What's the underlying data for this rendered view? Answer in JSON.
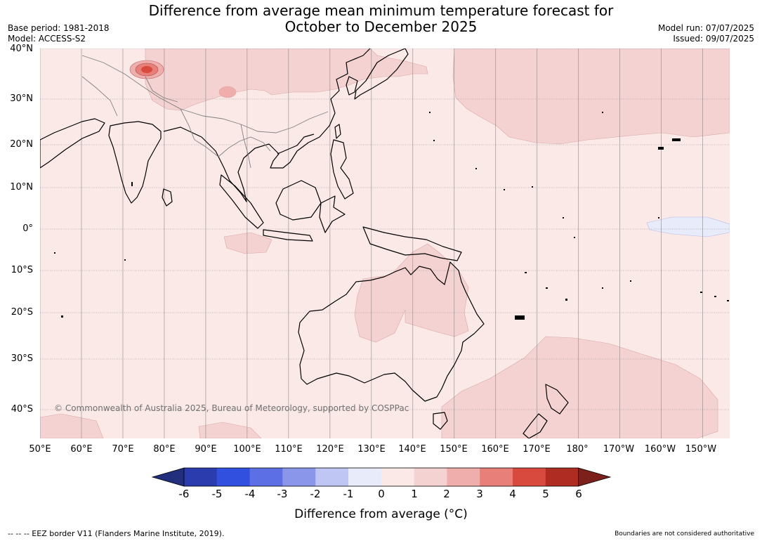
{
  "title_line1": "Difference from average mean minimum temperature forecast for",
  "title_line2": "October to December 2025",
  "meta": {
    "base_period": "Base period: 1981-2018",
    "model": "Model: ACCESS-S2",
    "model_run": "Model run: 07/07/2025",
    "issued": "Issued: 09/07/2025"
  },
  "map": {
    "lat_labels": [
      "40°N",
      "30°N",
      "20°N",
      "10°N",
      "0°",
      "10°S",
      "20°S",
      "30°S",
      "40°S"
    ],
    "lon_labels": [
      "50°E",
      "60°E",
      "70°E",
      "80°E",
      "90°E",
      "100°E",
      "110°E",
      "120°E",
      "130°E",
      "140°E",
      "150°E",
      "160°E",
      "170°E",
      "180°",
      "170°W",
      "160°W",
      "150°W"
    ],
    "copyright": "© Commonwealth of Australia 2025, Bureau of Meteorology, supported by COSPPac",
    "extent": {
      "lon": [
        50,
        216.5
      ],
      "lat": [
        -46.5,
        40
      ]
    },
    "colors": {
      "ocean_fill": "#fbe9e8",
      "warm_1_2": "#f4d2d1",
      "cool_0_minus1": "#e8ebfa",
      "coast": "#000000",
      "borders": "#808080",
      "gridlines": "#888888"
    }
  },
  "colorbar": {
    "ticks": [
      "-6",
      "-5",
      "-4",
      "-3",
      "-2",
      "-1",
      "0",
      "1",
      "2",
      "3",
      "4",
      "5",
      "6"
    ],
    "colors": [
      "#222f7c",
      "#2b3cae",
      "#3150e0",
      "#5c6fe4",
      "#8a96e9",
      "#c0c6f4",
      "#e8ebfa",
      "#fbe9e8",
      "#f4d2d1",
      "#efaeab",
      "#e88079",
      "#d84a3e",
      "#ae2c22",
      "#7d1f1a"
    ],
    "label": "Difference from average (°C)"
  },
  "footer": {
    "eez": "--  --  -- EEZ border V11 (Flanders Marine Institute, 2019).",
    "note": "Boundaries are not considered authoritative"
  }
}
